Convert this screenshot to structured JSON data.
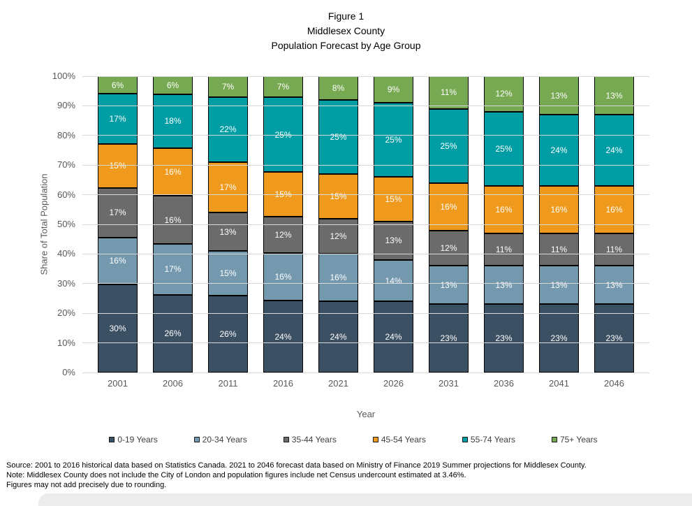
{
  "title": {
    "line1": "Figure 1",
    "line2": "Middlesex County",
    "line3": "Population Forecast by Age Group"
  },
  "chart_data": {
    "type": "bar",
    "stacked": true,
    "title": "Figure 1 Middlesex County Population Forecast by Age Group",
    "xlabel": "Year",
    "ylabel": "Share of Total Population",
    "ylim": [
      0,
      100
    ],
    "grid": true,
    "legend_position": "bottom",
    "value_label_suffix": "%",
    "categories": [
      "2001",
      "2006",
      "2011",
      "2016",
      "2021",
      "2026",
      "2031",
      "2036",
      "2041",
      "2046"
    ],
    "yticks": [
      "0%",
      "10%",
      "20%",
      "30%",
      "40%",
      "50%",
      "60%",
      "70%",
      "80%",
      "90%",
      "100%"
    ],
    "series": [
      {
        "name": "0-19 Years",
        "color": "#3C5063",
        "values": [
          30,
          26,
          26,
          24,
          24,
          24,
          23,
          23,
          23,
          23
        ]
      },
      {
        "name": "20-34 Years",
        "color": "#7499AF",
        "values": [
          16,
          17,
          15,
          16,
          16,
          14,
          13,
          13,
          13,
          13
        ]
      },
      {
        "name": "35-44 Years",
        "color": "#6B6B6B",
        "values": [
          17,
          16,
          13,
          12,
          12,
          13,
          12,
          11,
          11,
          11
        ]
      },
      {
        "name": "45-54 Years",
        "color": "#EF9A1D",
        "values": [
          15,
          16,
          17,
          15,
          15,
          15,
          16,
          16,
          16,
          16
        ]
      },
      {
        "name": "55-74 Years",
        "color": "#009EA4",
        "values": [
          17,
          18,
          22,
          25,
          25,
          25,
          25,
          25,
          24,
          24
        ]
      },
      {
        "name": "75+ Years",
        "color": "#77A952",
        "values": [
          6,
          6,
          7,
          7,
          8,
          9,
          11,
          12,
          13,
          13
        ]
      }
    ],
    "colors": {
      "gridline": "#d9d9d9",
      "axis_text": "#595959",
      "segment_label_text": "#ffffff",
      "legend_text": "#404040"
    }
  },
  "footnotes": {
    "line1": "Source: 2001 to 2016 historical data based on Statistics Canada.  2021 to 2046 forecast data based on Ministry of Finance 2019 Summer projections for Middlesex County.",
    "line2": "Note: Middlesex County does not include the City of London and population figures include net Census undercount estimated at 3.46%.",
    "line3": "Figures may not add precisely due to rounding."
  }
}
